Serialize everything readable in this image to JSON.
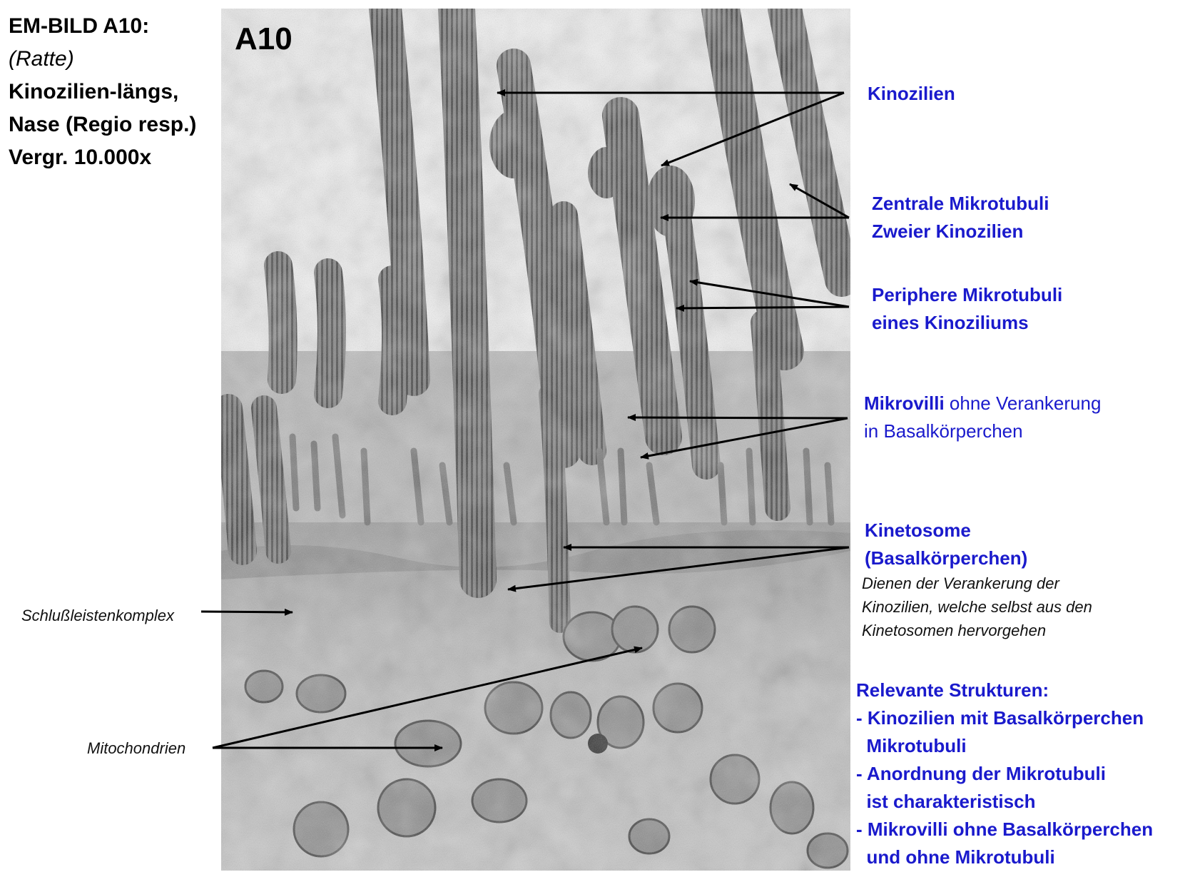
{
  "header": {
    "line1": "EM-BILD A10:",
    "line2": "(Ratte)",
    "line3": "Kinozilien-längs,",
    "line4": "Nase (Regio resp.)",
    "line5": "Vergr. 10.000x"
  },
  "micrograph": {
    "label": "A10"
  },
  "labels": {
    "kinozilien": "Kinozilien",
    "zentrale_1": "Zentrale Mikrotubuli",
    "zentrale_2": "Zweier Kinozilien",
    "periphere_1": "Periphere Mikrotubuli",
    "periphere_2": "eines Kinoziliums",
    "mikrovilli_bold": "Mikrovilli",
    "mikrovilli_rest": " ohne Verankerung",
    "mikrovilli_2": "in Basalkörperchen",
    "kinetosome_1": "Kinetosome",
    "kinetosome_2": "(Basalkörperchen)",
    "kinetosome_note_1": "Dienen der Verankerung der",
    "kinetosome_note_2": "Kinozilien, welche selbst aus den",
    "kinetosome_note_3": "Kinetosomen hervorgehen",
    "schluss": "Schlußleistenkomplex",
    "mitochondrien": "Mitochondrien"
  },
  "relevant": {
    "heading": "Relevante Strukturen:",
    "lines": [
      "- Kinozilien mit Basalkörperchen",
      "  Mikrotubuli",
      "- Anordnung der Mikrotubuli",
      "  ist charakteristisch",
      "- Mikrovilli ohne Basalkörperchen",
      "  und ohne Mikrotubuli"
    ]
  },
  "colors": {
    "label_blue": "#1a1acc",
    "arrow": "#000000"
  }
}
